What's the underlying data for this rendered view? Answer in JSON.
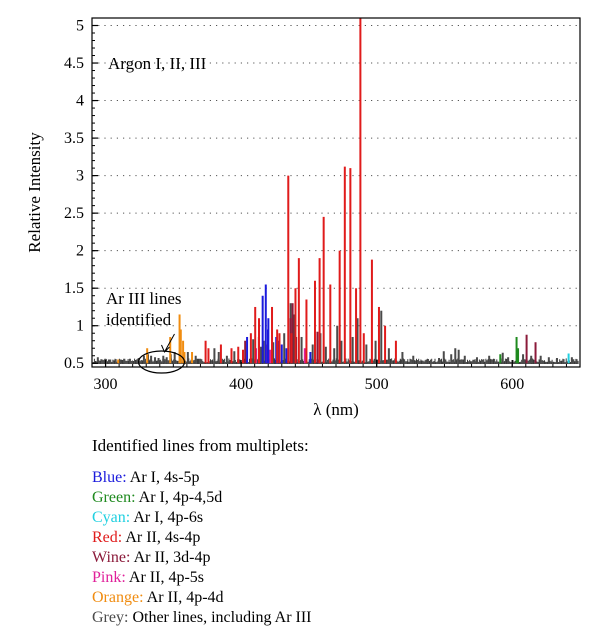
{
  "chart_data": {
    "type": "line",
    "title": "",
    "xlabel": "λ (nm)",
    "ylabel": "Relative Intensity",
    "xlim": [
      290,
      650
    ],
    "ylim": [
      0.45,
      5.1
    ],
    "baseline": 0.5,
    "x_ticks": [
      300,
      400,
      500,
      600
    ],
    "y_ticks": [
      0.5,
      1,
      1.5,
      2,
      2.5,
      3,
      3.5,
      4,
      4.5,
      5
    ],
    "y_tick_labels": [
      "0.5",
      "1",
      "1.5",
      "2",
      "2.5",
      "3",
      "3.5",
      "4",
      "4.5",
      "5"
    ],
    "grid": "dotted horizontal",
    "plot_label": "Argon I, II, III",
    "annotation": {
      "lines": [
        "Ar III lines",
        "identified"
      ],
      "x": 342,
      "y": 0.5
    },
    "series": [
      {
        "name": "Blue",
        "color": "#1a1adc",
        "lines": [
          [
            404.4,
            0.85
          ],
          [
            415.9,
            1.4
          ],
          [
            418.2,
            1.55
          ],
          [
            419.8,
            0.95
          ],
          [
            420.1,
            1.1
          ],
          [
            425.9,
            0.85
          ],
          [
            427.2,
            0.8
          ],
          [
            430.0,
            0.75
          ],
          [
            433.4,
            0.7
          ],
          [
            451.1,
            0.65
          ]
        ]
      },
      {
        "name": "Green",
        "color": "#1f8a1f",
        "lines": [
          [
            591.2,
            0.62
          ],
          [
            603.2,
            0.85
          ],
          [
            604.3,
            0.7
          ]
        ]
      },
      {
        "name": "Cyan",
        "color": "#20d0e0",
        "lines": [
          [
            641.6,
            0.63
          ]
        ]
      },
      {
        "name": "Red",
        "color": "#e01b1b",
        "lines": [
          [
            373.8,
            0.8
          ],
          [
            375.9,
            0.7
          ],
          [
            385.1,
            0.75
          ],
          [
            392.9,
            0.7
          ],
          [
            397.9,
            0.72
          ],
          [
            401.4,
            0.68
          ],
          [
            407.2,
            0.9
          ],
          [
            410.4,
            1.25
          ],
          [
            413.2,
            1.1
          ],
          [
            422.8,
            1.25
          ],
          [
            426.6,
            0.95
          ],
          [
            428.3,
            0.9
          ],
          [
            434.8,
            3.0
          ],
          [
            437.1,
            0.9
          ],
          [
            440.1,
            1.5
          ],
          [
            442.6,
            1.9
          ],
          [
            448.2,
            1.35
          ],
          [
            454.5,
            1.6
          ],
          [
            457.9,
            1.9
          ],
          [
            460.9,
            2.45
          ],
          [
            465.8,
            1.55
          ],
          [
            472.7,
            2.0
          ],
          [
            476.5,
            3.12
          ],
          [
            480.6,
            3.1
          ],
          [
            484.8,
            1.5
          ],
          [
            487.99,
            5.1
          ],
          [
            490.5,
            0.9
          ],
          [
            496.5,
            1.88
          ],
          [
            501.7,
            1.25
          ],
          [
            506.2,
            1.0
          ],
          [
            514.2,
            0.8
          ]
        ]
      },
      {
        "name": "Wine",
        "color": "#8b1a3a",
        "lines": [
          [
            403.0,
            0.8
          ],
          [
            413.1,
            0.85
          ],
          [
            426.2,
            0.78
          ],
          [
            436.5,
            1.1
          ],
          [
            438.0,
            1.3
          ],
          [
            440.6,
            0.85
          ],
          [
            456.3,
            0.92
          ],
          [
            610.6,
            0.88
          ],
          [
            617.2,
            0.78
          ]
        ]
      },
      {
        "name": "Pink",
        "color": "#e0209a",
        "lines": [
          [
            411.0,
            0.7
          ],
          [
            419.3,
            0.75
          ],
          [
            421.4,
            0.68
          ],
          [
            447.0,
            0.7
          ]
        ]
      },
      {
        "name": "Orange",
        "color": "#f08c10",
        "lines": [
          [
            309.3,
            0.55
          ],
          [
            330.7,
            0.7
          ],
          [
            347.7,
            0.85
          ],
          [
            354.6,
            1.15
          ],
          [
            355.5,
            0.95
          ],
          [
            357.2,
            0.8
          ],
          [
            358.2,
            0.65
          ],
          [
            363.8,
            0.65
          ]
        ]
      },
      {
        "name": "Grey",
        "color": "#4a4a4a",
        "lines": [
          [
            294.3,
            0.58
          ],
          [
            299.8,
            0.56
          ],
          [
            302.5,
            0.55
          ],
          [
            311.0,
            0.55
          ],
          [
            318.0,
            0.56
          ],
          [
            324.5,
            0.57
          ],
          [
            328.3,
            0.6
          ],
          [
            331.3,
            0.62
          ],
          [
            333.6,
            0.6
          ],
          [
            336.5,
            0.58
          ],
          [
            339.1,
            0.57
          ],
          [
            342.6,
            0.6
          ],
          [
            345.1,
            0.58
          ],
          [
            348.1,
            0.62
          ],
          [
            351.0,
            0.65
          ],
          [
            360.7,
            0.65
          ],
          [
            366.5,
            0.6
          ],
          [
            380.3,
            0.7
          ],
          [
            383.5,
            0.65
          ],
          [
            389.5,
            0.6
          ],
          [
            395.0,
            0.66
          ],
          [
            408.9,
            0.82
          ],
          [
            414.7,
            0.72
          ],
          [
            416.7,
            0.8
          ],
          [
            423.7,
            0.78
          ],
          [
            431.8,
            0.9
          ],
          [
            436.6,
            1.3
          ],
          [
            439.3,
            1.15
          ],
          [
            444.6,
            0.85
          ],
          [
            452.8,
            0.75
          ],
          [
            458.5,
            0.9
          ],
          [
            462.5,
            0.72
          ],
          [
            468.7,
            0.7
          ],
          [
            470.9,
            1.0
          ],
          [
            474.0,
            0.8
          ],
          [
            482.3,
            0.85
          ],
          [
            485.9,
            1.1
          ],
          [
            492.4,
            0.75
          ],
          [
            499.2,
            0.8
          ],
          [
            503.4,
            1.2
          ],
          [
            509.0,
            0.7
          ],
          [
            519.0,
            0.65
          ],
          [
            527.0,
            0.6
          ],
          [
            537.0,
            0.55
          ],
          [
            546.0,
            0.57
          ],
          [
            549.5,
            0.66
          ],
          [
            555.0,
            0.62
          ],
          [
            558.0,
            0.7
          ],
          [
            560.5,
            0.68
          ],
          [
            565.0,
            0.6
          ],
          [
            574.0,
            0.58
          ],
          [
            583.0,
            0.6
          ],
          [
            593.0,
            0.64
          ],
          [
            597.0,
            0.58
          ],
          [
            608.0,
            0.62
          ],
          [
            614.0,
            0.6
          ],
          [
            621.0,
            0.6
          ],
          [
            627.0,
            0.58
          ],
          [
            633.0,
            0.57
          ],
          [
            644.0,
            0.58
          ]
        ]
      }
    ]
  },
  "legend": {
    "title": "Identified lines from multiplets:",
    "items": [
      {
        "name": "Blue",
        "label": "Ar I, 4s-5p",
        "color": "#1a1adc"
      },
      {
        "name": "Green",
        "label": "Ar I, 4p-4,5d",
        "color": "#1f8a1f"
      },
      {
        "name": "Cyan",
        "label": "Ar I, 4p-6s",
        "color": "#20d0e0"
      },
      {
        "name": "Red",
        "label": "Ar II, 4s-4p",
        "color": "#e01b1b"
      },
      {
        "name": "Wine",
        "label": "Ar II, 3d-4p",
        "color": "#8b1a3a"
      },
      {
        "name": "Pink",
        "label": "Ar II, 4p-5s",
        "color": "#e0209a"
      },
      {
        "name": "Orange",
        "label": "Ar II, 4p-4d",
        "color": "#f08c10"
      },
      {
        "name": "Grey",
        "label": "Other lines, including Ar III",
        "color": "#4a4a4a"
      }
    ]
  }
}
